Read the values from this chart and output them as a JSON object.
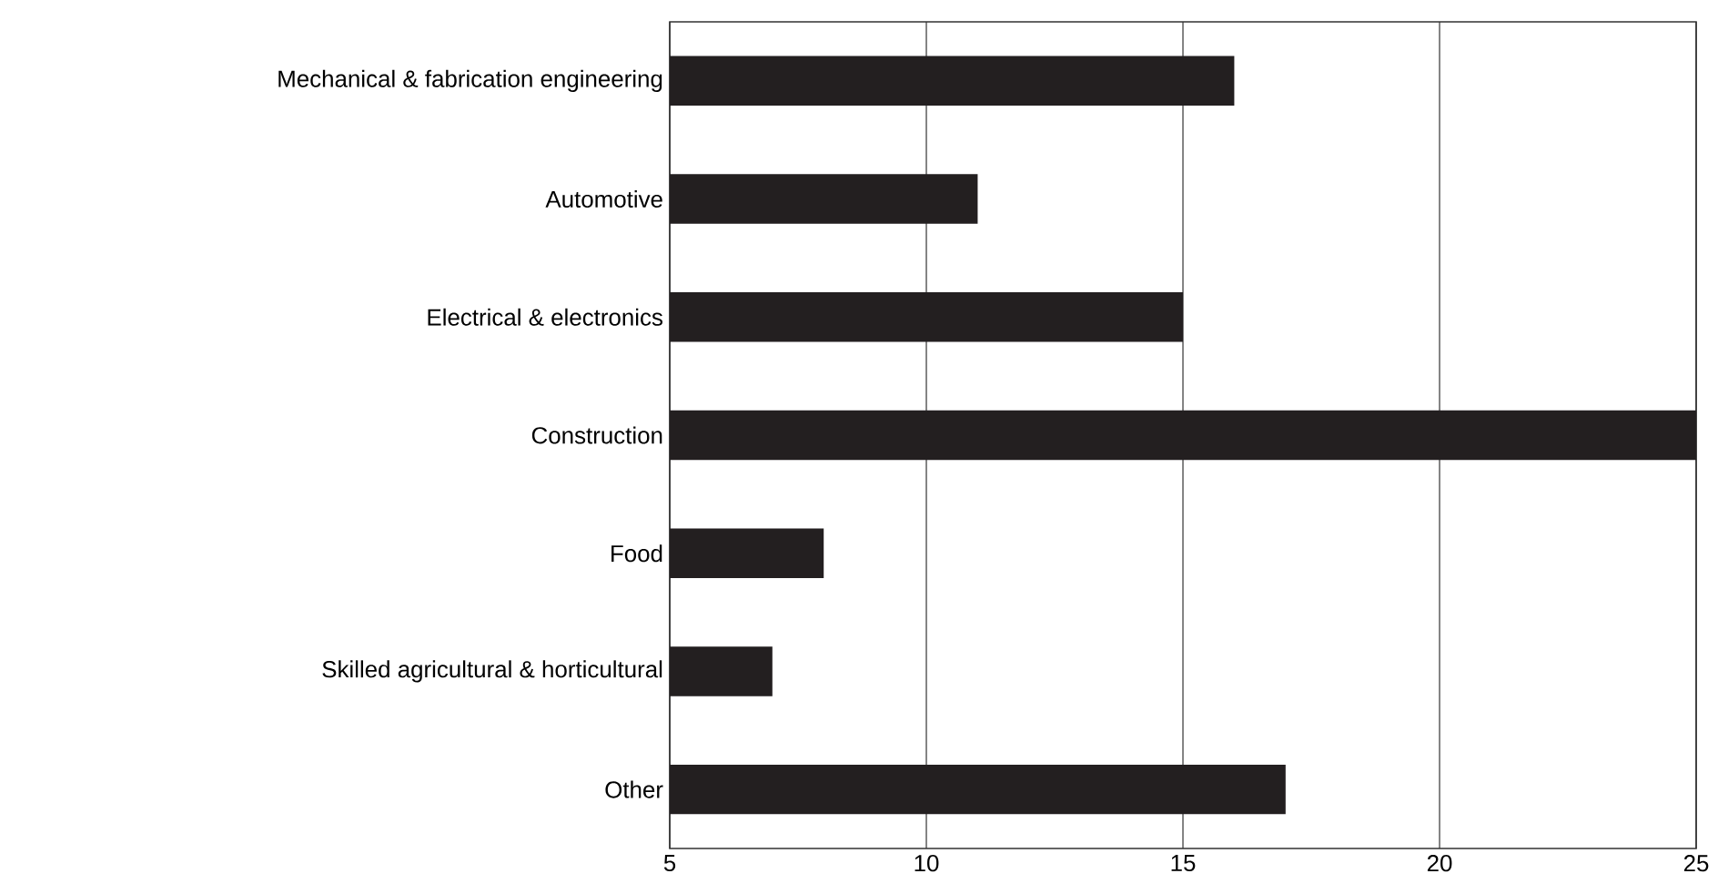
{
  "chart_data": {
    "type": "bar",
    "orientation": "horizontal",
    "categories": [
      "Mechanical & fabrication engineering",
      "Automotive",
      "Electrical & electronics",
      "Construction",
      "Food",
      "Skilled agricultural & horticultural",
      "Other"
    ],
    "values": [
      16,
      11,
      15,
      25,
      8,
      7,
      17
    ],
    "color": "#231f20",
    "xlim": [
      5,
      25
    ],
    "xticks": [
      5,
      10,
      15,
      20,
      25
    ],
    "grid": "x"
  }
}
